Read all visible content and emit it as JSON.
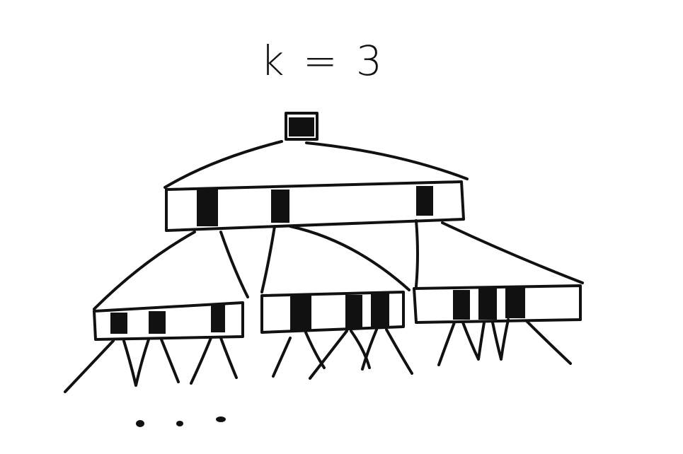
{
  "diagram": {
    "title": "k = 3",
    "ink_color": "#111111",
    "background": "#ffffff",
    "root": {
      "keys": 1
    },
    "level1": {
      "keys": 3
    },
    "level2": [
      {
        "keys": 3
      },
      {
        "keys": 3
      },
      {
        "keys": 3
      }
    ],
    "ellipsis_dots": 3
  }
}
